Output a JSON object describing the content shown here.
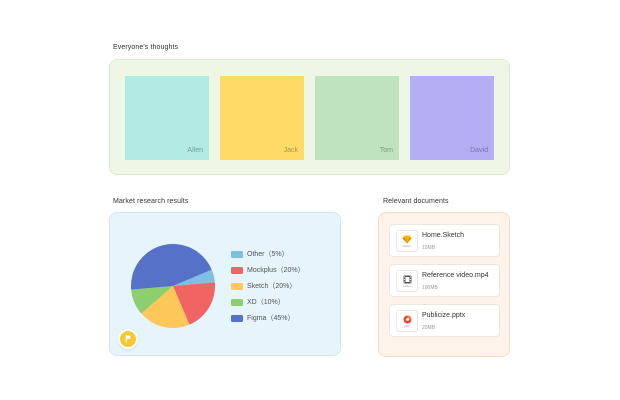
{
  "thoughts": {
    "title": "Everyone's thoughts",
    "notes": [
      {
        "name": "Allen",
        "color": "#b1ebe4"
      },
      {
        "name": "Jack",
        "color": "#fedb67"
      },
      {
        "name": "Tom",
        "color": "#bfe4bd"
      },
      {
        "name": "David",
        "color": "#b6aef4"
      }
    ]
  },
  "market": {
    "title": "Market research results",
    "flag_icon": "flag-icon",
    "accent": "#f6c833"
  },
  "chart_data": {
    "type": "pie",
    "title": "",
    "slices": [
      {
        "label": "Other（5%）",
        "name": "Other",
        "value": 5,
        "color": "#7fbfe0"
      },
      {
        "label": "Mockplus（20%）",
        "name": "Mockplus",
        "value": 20,
        "color": "#f06464"
      },
      {
        "label": "Sketch（20%）",
        "name": "Sketch",
        "value": 20,
        "color": "#fdc759"
      },
      {
        "label": "XD（10%）",
        "name": "XD",
        "value": 10,
        "color": "#8dcf6f"
      },
      {
        "label": "Figma（45%）",
        "name": "Figma",
        "value": 45,
        "color": "#5572c8"
      }
    ],
    "legend_position": "right"
  },
  "documents": {
    "title": "Relevant documents",
    "items": [
      {
        "name": "Home.Sketch",
        "size": "10MB",
        "icon": "sketch-file-icon",
        "tag": "sketch"
      },
      {
        "name": "Reference video.mp4",
        "size": "100MB",
        "icon": "video-file-icon",
        "tag": "video"
      },
      {
        "name": "Publicize.pptx",
        "size": "20MB",
        "icon": "ppt-file-icon",
        "tag": "pptx"
      }
    ]
  }
}
